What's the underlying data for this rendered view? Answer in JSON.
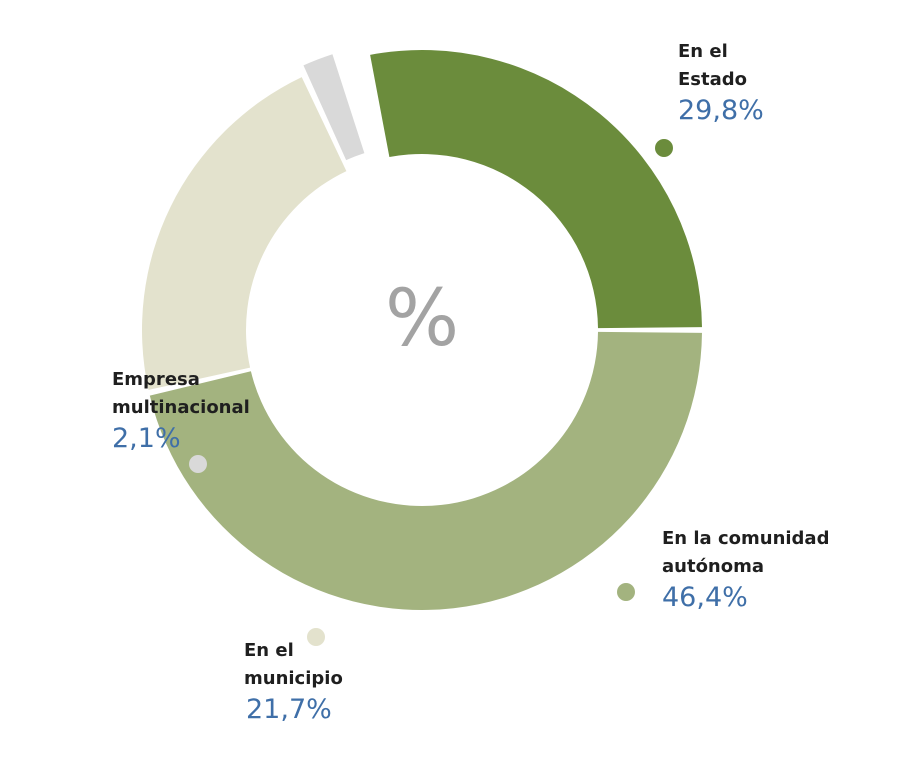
{
  "chart_data": {
    "type": "donut",
    "center_label": "%",
    "slices": [
      {
        "name_lines": [
          "En el",
          "Estado"
        ],
        "value": 29.8,
        "value_label": "29,8%",
        "color": "#6b8c3c"
      },
      {
        "name_lines": [
          "En la comunidad",
          "autónoma"
        ],
        "value": 46.4,
        "value_label": "46,4%",
        "color": "#a3b37f"
      },
      {
        "name_lines": [
          "En el",
          "municipio"
        ],
        "value": 21.7,
        "value_label": "21,7%",
        "color": "#e3e2cd"
      },
      {
        "name_lines": [
          "Empresa",
          "multinacional"
        ],
        "value": 2.1,
        "value_label": "2,1%",
        "color": "#d9d9d9"
      }
    ]
  }
}
